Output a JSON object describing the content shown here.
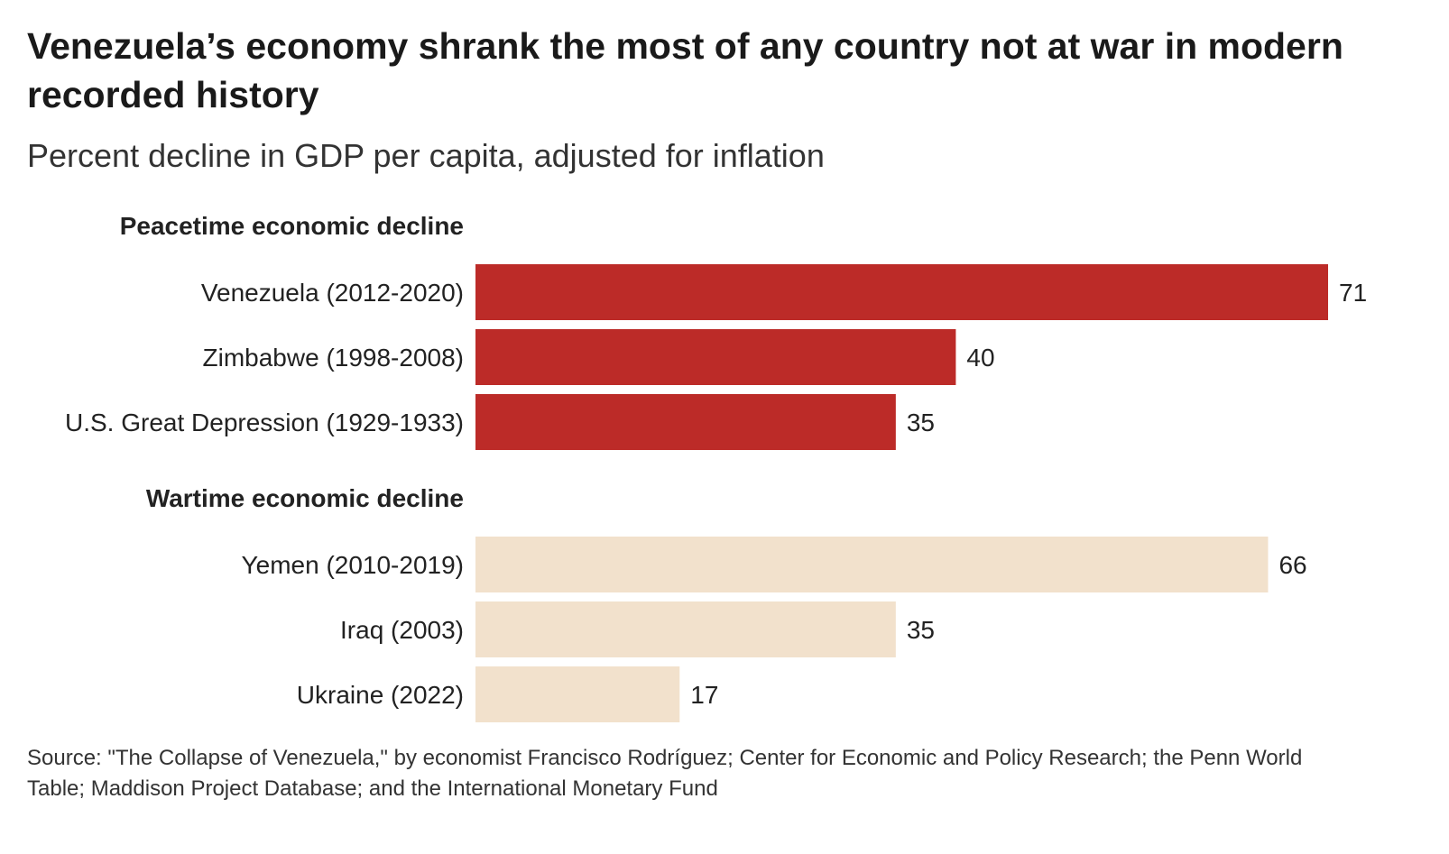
{
  "title": "Venezuela’s economy shrank the most of any country not at war in modern recorded history",
  "subtitle": "Percent decline in GDP per capita, adjusted for inflation",
  "source": "Source: \"The Collapse of Venezuela,\" by economist Francisco Rodríguez; Center for Economic and Policy Research; the Penn World Table; Maddison Project Database; and the International Monetary Fund",
  "colors": {
    "peacetime": "#bc2b28",
    "wartime": "#f2e1cc"
  },
  "chart_data": {
    "type": "bar",
    "orientation": "horizontal",
    "title": "Venezuela’s economy shrank the most of any country not at war in modern recorded history",
    "subtitle": "Percent decline in GDP per capita, adjusted for inflation",
    "xlim": [
      0,
      71
    ],
    "grid": false,
    "groups": [
      {
        "name": "Peacetime economic decline",
        "color": "#bc2b28",
        "categories": [
          "Venezuela (2012-2020)",
          "Zimbabwe (1998-2008)",
          "U.S. Great Depression (1929-1933)"
        ],
        "values": [
          71,
          40,
          35
        ]
      },
      {
        "name": "Wartime economic decline",
        "color": "#f2e1cc",
        "categories": [
          "Yemen (2010-2019)",
          "Iraq (2003)",
          "Ukraine (2022)"
        ],
        "values": [
          66,
          35,
          17
        ]
      }
    ]
  }
}
